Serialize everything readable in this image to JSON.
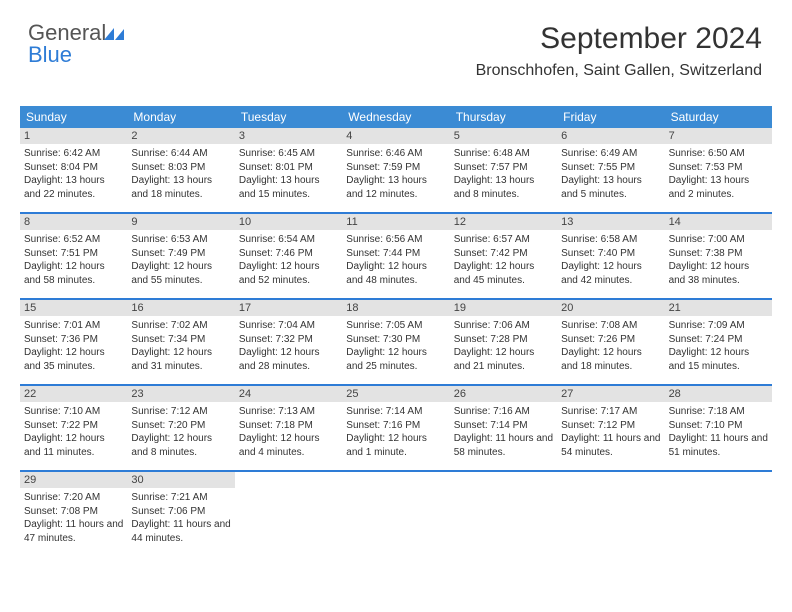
{
  "logo": {
    "text_gray": "General",
    "text_blue": "Blue"
  },
  "header": {
    "month_title": "September 2024",
    "location": "Bronschhofen, Saint Gallen, Switzerland"
  },
  "colors": {
    "header_bar": "#3b8bd4",
    "row_divider": "#2e7cd6",
    "daynum_bg": "#e3e3e3",
    "logo_blue": "#2e7cd6"
  },
  "days_of_week": [
    "Sunday",
    "Monday",
    "Tuesday",
    "Wednesday",
    "Thursday",
    "Friday",
    "Saturday"
  ],
  "weeks": [
    [
      {
        "n": "1",
        "sr": "Sunrise: 6:42 AM",
        "ss": "Sunset: 8:04 PM",
        "dl": "Daylight: 13 hours and 22 minutes."
      },
      {
        "n": "2",
        "sr": "Sunrise: 6:44 AM",
        "ss": "Sunset: 8:03 PM",
        "dl": "Daylight: 13 hours and 18 minutes."
      },
      {
        "n": "3",
        "sr": "Sunrise: 6:45 AM",
        "ss": "Sunset: 8:01 PM",
        "dl": "Daylight: 13 hours and 15 minutes."
      },
      {
        "n": "4",
        "sr": "Sunrise: 6:46 AM",
        "ss": "Sunset: 7:59 PM",
        "dl": "Daylight: 13 hours and 12 minutes."
      },
      {
        "n": "5",
        "sr": "Sunrise: 6:48 AM",
        "ss": "Sunset: 7:57 PM",
        "dl": "Daylight: 13 hours and 8 minutes."
      },
      {
        "n": "6",
        "sr": "Sunrise: 6:49 AM",
        "ss": "Sunset: 7:55 PM",
        "dl": "Daylight: 13 hours and 5 minutes."
      },
      {
        "n": "7",
        "sr": "Sunrise: 6:50 AM",
        "ss": "Sunset: 7:53 PM",
        "dl": "Daylight: 13 hours and 2 minutes."
      }
    ],
    [
      {
        "n": "8",
        "sr": "Sunrise: 6:52 AM",
        "ss": "Sunset: 7:51 PM",
        "dl": "Daylight: 12 hours and 58 minutes."
      },
      {
        "n": "9",
        "sr": "Sunrise: 6:53 AM",
        "ss": "Sunset: 7:49 PM",
        "dl": "Daylight: 12 hours and 55 minutes."
      },
      {
        "n": "10",
        "sr": "Sunrise: 6:54 AM",
        "ss": "Sunset: 7:46 PM",
        "dl": "Daylight: 12 hours and 52 minutes."
      },
      {
        "n": "11",
        "sr": "Sunrise: 6:56 AM",
        "ss": "Sunset: 7:44 PM",
        "dl": "Daylight: 12 hours and 48 minutes."
      },
      {
        "n": "12",
        "sr": "Sunrise: 6:57 AM",
        "ss": "Sunset: 7:42 PM",
        "dl": "Daylight: 12 hours and 45 minutes."
      },
      {
        "n": "13",
        "sr": "Sunrise: 6:58 AM",
        "ss": "Sunset: 7:40 PM",
        "dl": "Daylight: 12 hours and 42 minutes."
      },
      {
        "n": "14",
        "sr": "Sunrise: 7:00 AM",
        "ss": "Sunset: 7:38 PM",
        "dl": "Daylight: 12 hours and 38 minutes."
      }
    ],
    [
      {
        "n": "15",
        "sr": "Sunrise: 7:01 AM",
        "ss": "Sunset: 7:36 PM",
        "dl": "Daylight: 12 hours and 35 minutes."
      },
      {
        "n": "16",
        "sr": "Sunrise: 7:02 AM",
        "ss": "Sunset: 7:34 PM",
        "dl": "Daylight: 12 hours and 31 minutes."
      },
      {
        "n": "17",
        "sr": "Sunrise: 7:04 AM",
        "ss": "Sunset: 7:32 PM",
        "dl": "Daylight: 12 hours and 28 minutes."
      },
      {
        "n": "18",
        "sr": "Sunrise: 7:05 AM",
        "ss": "Sunset: 7:30 PM",
        "dl": "Daylight: 12 hours and 25 minutes."
      },
      {
        "n": "19",
        "sr": "Sunrise: 7:06 AM",
        "ss": "Sunset: 7:28 PM",
        "dl": "Daylight: 12 hours and 21 minutes."
      },
      {
        "n": "20",
        "sr": "Sunrise: 7:08 AM",
        "ss": "Sunset: 7:26 PM",
        "dl": "Daylight: 12 hours and 18 minutes."
      },
      {
        "n": "21",
        "sr": "Sunrise: 7:09 AM",
        "ss": "Sunset: 7:24 PM",
        "dl": "Daylight: 12 hours and 15 minutes."
      }
    ],
    [
      {
        "n": "22",
        "sr": "Sunrise: 7:10 AM",
        "ss": "Sunset: 7:22 PM",
        "dl": "Daylight: 12 hours and 11 minutes."
      },
      {
        "n": "23",
        "sr": "Sunrise: 7:12 AM",
        "ss": "Sunset: 7:20 PM",
        "dl": "Daylight: 12 hours and 8 minutes."
      },
      {
        "n": "24",
        "sr": "Sunrise: 7:13 AM",
        "ss": "Sunset: 7:18 PM",
        "dl": "Daylight: 12 hours and 4 minutes."
      },
      {
        "n": "25",
        "sr": "Sunrise: 7:14 AM",
        "ss": "Sunset: 7:16 PM",
        "dl": "Daylight: 12 hours and 1 minute."
      },
      {
        "n": "26",
        "sr": "Sunrise: 7:16 AM",
        "ss": "Sunset: 7:14 PM",
        "dl": "Daylight: 11 hours and 58 minutes."
      },
      {
        "n": "27",
        "sr": "Sunrise: 7:17 AM",
        "ss": "Sunset: 7:12 PM",
        "dl": "Daylight: 11 hours and 54 minutes."
      },
      {
        "n": "28",
        "sr": "Sunrise: 7:18 AM",
        "ss": "Sunset: 7:10 PM",
        "dl": "Daylight: 11 hours and 51 minutes."
      }
    ],
    [
      {
        "n": "29",
        "sr": "Sunrise: 7:20 AM",
        "ss": "Sunset: 7:08 PM",
        "dl": "Daylight: 11 hours and 47 minutes."
      },
      {
        "n": "30",
        "sr": "Sunrise: 7:21 AM",
        "ss": "Sunset: 7:06 PM",
        "dl": "Daylight: 11 hours and 44 minutes."
      },
      null,
      null,
      null,
      null,
      null
    ]
  ]
}
